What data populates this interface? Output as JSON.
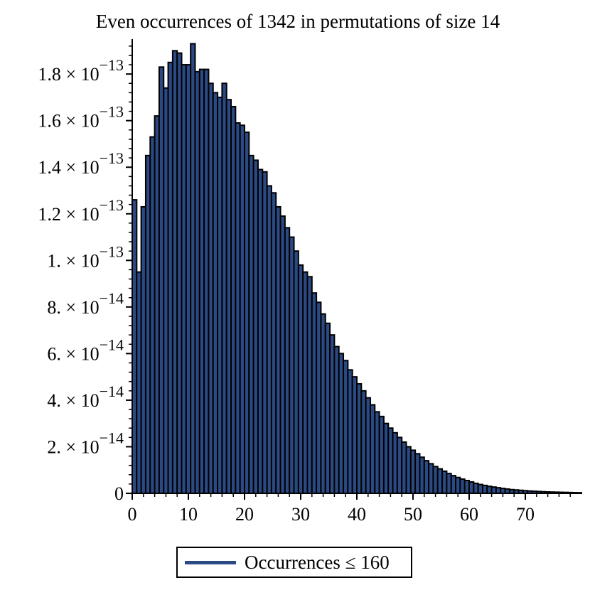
{
  "chart_data": {
    "type": "bar",
    "title": "Even occurrences of 1342 in permutations of size 14",
    "xlabel": "",
    "ylabel": "",
    "xlim": [
      0,
      80
    ],
    "ylim": [
      0,
      1.95e-13
    ],
    "x_ticks": [
      0,
      10,
      20,
      30,
      40,
      50,
      60,
      70
    ],
    "y_ticks": [
      {
        "value": 0,
        "mantissa": "0",
        "exponent": ""
      },
      {
        "value": 2e-14,
        "mantissa": "2. × 10",
        "exponent": "−14"
      },
      {
        "value": 4e-14,
        "mantissa": "4. × 10",
        "exponent": "−14"
      },
      {
        "value": 6e-14,
        "mantissa": "6. × 10",
        "exponent": "−14"
      },
      {
        "value": 8e-14,
        "mantissa": "8. × 10",
        "exponent": "−14"
      },
      {
        "value": 1e-13,
        "mantissa": "1. × 10",
        "exponent": "−13"
      },
      {
        "value": 1.2e-13,
        "mantissa": "1.2 × 10",
        "exponent": "−13"
      },
      {
        "value": 1.4e-13,
        "mantissa": "1.4 × 10",
        "exponent": "−13"
      },
      {
        "value": 1.6e-13,
        "mantissa": "1.6 × 10",
        "exponent": "−13"
      },
      {
        "value": 1.8e-13,
        "mantissa": "1.8 × 10",
        "exponent": "−13"
      }
    ],
    "bar_width": 0.8,
    "bar_color": "#2b4a84",
    "legend": {
      "label": "Occurrences ≤ 160",
      "position": "bottom-center"
    },
    "series": [
      {
        "x": [
          0,
          0.8,
          1.6,
          2.4,
          3.2,
          4,
          4.8,
          5.6,
          6.4,
          7.2,
          8,
          8.8,
          9.6,
          10.4,
          11.2,
          12,
          12.8,
          13.6,
          14.4,
          15.2,
          16,
          16.8,
          17.6,
          18.4,
          19.2,
          20,
          20.8,
          21.6,
          22.4,
          23.2,
          24,
          24.8,
          25.6,
          26.4,
          27.2,
          28,
          28.8,
          29.6,
          30.4,
          31.2,
          32,
          32.8,
          33.6,
          34.4,
          35.2,
          36,
          36.8,
          37.6,
          38.4,
          39.2,
          40,
          40.8,
          41.6,
          42.4,
          43.2,
          44,
          44.8,
          45.6,
          46.4,
          47.2,
          48,
          48.8,
          49.6,
          50.4,
          51.2,
          52,
          52.8,
          53.6,
          54.4,
          55.2,
          56,
          56.8,
          57.6,
          58.4,
          59.2,
          60,
          60.8,
          61.6,
          62.4,
          63.2,
          64,
          64.8,
          65.6,
          66.4,
          67.2,
          68,
          68.8,
          69.6,
          70.4,
          71.2,
          72,
          72.8,
          73.6,
          74.4,
          75.2,
          76,
          76.8,
          77.6,
          78.4,
          79.2
        ],
        "values": [
          1.26e-13,
          9.5e-14,
          1.23e-13,
          1.45e-13,
          1.53e-13,
          1.62e-13,
          1.83e-13,
          1.74e-13,
          1.85e-13,
          1.9e-13,
          1.89e-13,
          1.84e-13,
          1.84e-13,
          1.93e-13,
          1.81e-13,
          1.82e-13,
          1.82e-13,
          1.76e-13,
          1.72e-13,
          1.7e-13,
          1.76e-13,
          1.69e-13,
          1.66e-13,
          1.59e-13,
          1.58e-13,
          1.55e-13,
          1.45e-13,
          1.43e-13,
          1.39e-13,
          1.38e-13,
          1.32e-13,
          1.29e-13,
          1.23e-13,
          1.19e-13,
          1.14e-13,
          1.1e-13,
          1.04e-13,
          9.8e-14,
          9.5e-14,
          9.3e-14,
          8.6e-14,
          8.2e-14,
          7.7e-14,
          7.3e-14,
          6.8e-14,
          6.3e-14,
          6e-14,
          5.7e-14,
          5.3e-14,
          5e-14,
          4.7e-14,
          4.4e-14,
          4.1e-14,
          3.8e-14,
          3.5e-14,
          3.3e-14,
          3e-14,
          2.8e-14,
          2.6e-14,
          2.4e-14,
          2.2e-14,
          2e-14,
          1.85e-14,
          1.7e-14,
          1.55e-14,
          1.4e-14,
          1.27e-14,
          1.15e-14,
          1.05e-14,
          9.5e-15,
          8.5e-15,
          7.6e-15,
          6.8e-15,
          6.1e-15,
          5.5e-15,
          4.9e-15,
          4.3e-15,
          3.8e-15,
          3.4e-15,
          3e-15,
          2.7e-15,
          2.4e-15,
          2.1e-15,
          1.85e-15,
          1.6e-15,
          1.45e-15,
          1.3e-15,
          1.15e-15,
          1e-15,
          9e-16,
          8e-16,
          7e-16,
          6e-16,
          5.5e-16,
          5e-16,
          4.5e-16,
          4e-16,
          3.5e-16,
          3e-16,
          2.6e-16
        ]
      }
    ]
  }
}
